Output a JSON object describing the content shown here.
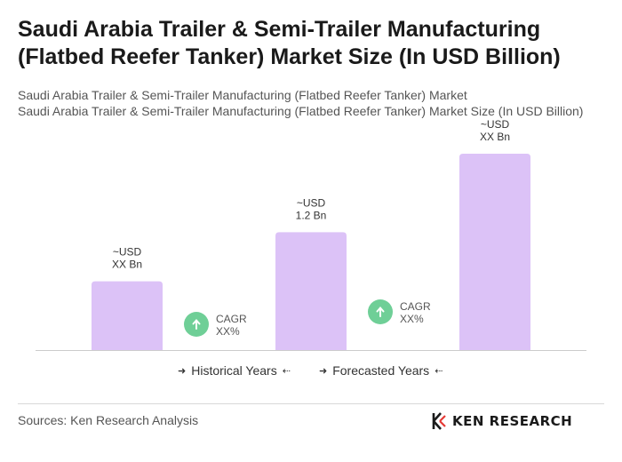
{
  "title": "Saudi Arabia Trailer & Semi-Trailer Manufacturing (Flatbed Reefer Tanker) Market Size (In USD Billion)",
  "subtitle_1": "Saudi Arabia Trailer & Semi-Trailer Manufacturing (Flatbed Reefer Tanker) Market",
  "subtitle_2": "Saudi Arabia Trailer & Semi-Trailer Manufacturing (Flatbed Reefer Tanker) Market Size (In USD Billion)",
  "colors": {
    "bar": "#dcc2f7",
    "cagr_circle": "#6fcf97",
    "axis": "#cccccc"
  },
  "chart_data": {
    "type": "bar",
    "categories": [
      "",
      "",
      ""
    ],
    "values": [
      0.7,
      1.2,
      2.0
    ],
    "value_labels": [
      [
        "~USD",
        "XX Bn"
      ],
      [
        "~USD",
        "1.2 Bn"
      ],
      [
        "~USD",
        "XX Bn"
      ]
    ],
    "ylim": [
      0,
      2.1
    ],
    "grid": false,
    "cagr_annotations": [
      {
        "icon": "arrow-up-icon",
        "line1": "CAGR",
        "line2": "XX%"
      },
      {
        "icon": "arrow-up-icon",
        "line1": "CAGR",
        "line2": "XX%"
      }
    ],
    "legend": {
      "historical": "Historical Years",
      "forecasted": "Forecasted Years"
    }
  },
  "footer": {
    "sources": "Sources: Ken Research Analysis",
    "logo_text": "KEN RESEARCH",
    "logo_icon": "ken-research-logo-icon"
  }
}
